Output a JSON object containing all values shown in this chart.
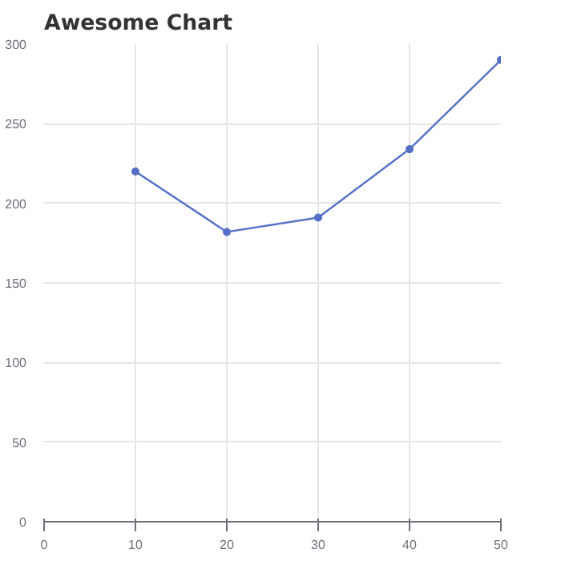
{
  "chart_data": {
    "type": "line",
    "title": "Awesome Chart",
    "x": [
      10,
      20,
      30,
      40,
      50
    ],
    "series": [
      {
        "color": "#5470c6",
        "values": [
          220,
          182,
          191,
          234,
          290
        ]
      }
    ],
    "xlim": [
      0,
      50
    ],
    "xticks": [
      0,
      10,
      20,
      30,
      40,
      50
    ],
    "ylim": [
      0,
      300
    ],
    "yticks": [
      0,
      50,
      100,
      150,
      200,
      250,
      300
    ],
    "grid": true,
    "marker": "circle",
    "line_style": "solid"
  }
}
